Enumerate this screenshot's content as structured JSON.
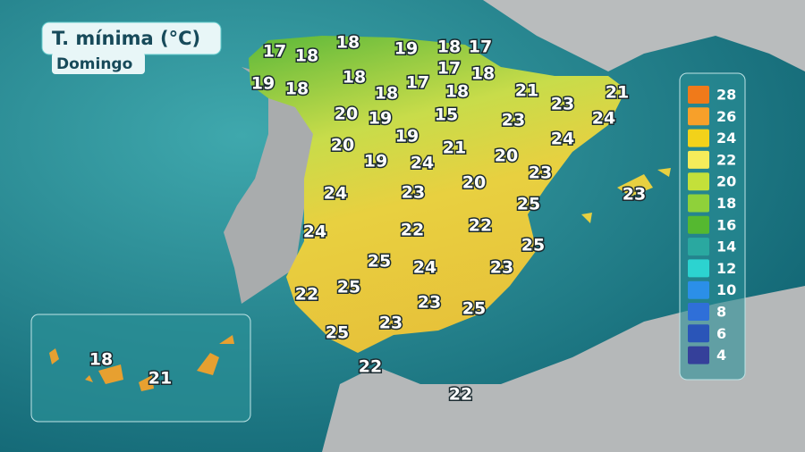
{
  "title": "T. mínima (°C)",
  "subtitle": "Domingo",
  "labels": [
    17,
    18,
    18,
    19,
    18,
    17,
    19,
    18,
    18,
    17,
    18,
    18,
    17,
    18,
    21,
    21,
    20,
    19,
    15,
    23,
    23,
    24,
    20,
    19,
    21,
    24,
    20,
    19,
    24,
    23,
    20,
    24,
    23,
    23,
    25,
    24,
    22,
    22,
    25,
    25,
    24,
    23,
    22,
    25,
    23,
    25,
    23,
    25,
    22,
    22
  ],
  "canarias_labels": [
    18,
    21
  ],
  "legend": [
    {
      "value": 28,
      "color": "#f07a1a"
    },
    {
      "value": 26,
      "color": "#f7a02a"
    },
    {
      "value": 24,
      "color": "#f2d21a"
    },
    {
      "value": 22,
      "color": "#f5ec5a"
    },
    {
      "value": 20,
      "color": "#c4e03a"
    },
    {
      "value": 18,
      "color": "#8fd13a"
    },
    {
      "value": 16,
      "color": "#55b830"
    },
    {
      "value": 14,
      "color": "#2aa8a0"
    },
    {
      "value": 12,
      "color": "#2cd3d0"
    },
    {
      "value": 10,
      "color": "#2b8fe8"
    },
    {
      "value": 8,
      "color": "#2f6fd8"
    },
    {
      "value": 6,
      "color": "#2a55b8"
    },
    {
      "value": 4,
      "color": "#35409a"
    }
  ]
}
